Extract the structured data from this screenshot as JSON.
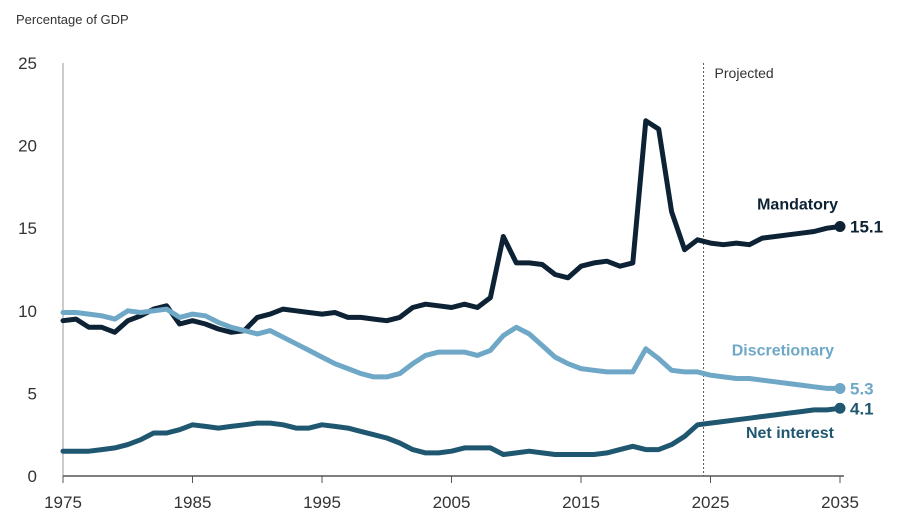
{
  "chart_data": {
    "type": "line",
    "ylabel": "Percentage of GDP",
    "ylim": [
      0,
      25
    ],
    "xlim": [
      1975,
      2035
    ],
    "y_ticks": [
      0,
      5,
      10,
      15,
      20,
      25
    ],
    "x_ticks": [
      1975,
      1985,
      1995,
      2005,
      2015,
      2025,
      2035
    ],
    "projection_start": 2024,
    "projection_label": "Projected",
    "colors": {
      "mandatory": "#0d2235",
      "discretionary": "#6fa8c7",
      "net_interest": "#1f5770"
    },
    "x": [
      1975,
      1976,
      1977,
      1978,
      1979,
      1980,
      1981,
      1982,
      1983,
      1984,
      1985,
      1986,
      1987,
      1988,
      1989,
      1990,
      1991,
      1992,
      1993,
      1994,
      1995,
      1996,
      1997,
      1998,
      1999,
      2000,
      2001,
      2002,
      2003,
      2004,
      2005,
      2006,
      2007,
      2008,
      2009,
      2010,
      2011,
      2012,
      2013,
      2014,
      2015,
      2016,
      2017,
      2018,
      2019,
      2020,
      2021,
      2022,
      2023,
      2024,
      2025,
      2026,
      2027,
      2028,
      2029,
      2030,
      2031,
      2032,
      2033,
      2034,
      2035
    ],
    "series": [
      {
        "key": "mandatory",
        "name": "Mandatory",
        "end_value_label": "15.1",
        "values": [
          9.4,
          9.5,
          9.0,
          9.0,
          8.7,
          9.4,
          9.7,
          10.1,
          10.3,
          9.2,
          9.4,
          9.2,
          8.9,
          8.7,
          8.8,
          9.6,
          9.8,
          10.1,
          10.0,
          9.9,
          9.8,
          9.9,
          9.6,
          9.6,
          9.5,
          9.4,
          9.6,
          10.2,
          10.4,
          10.3,
          10.2,
          10.4,
          10.2,
          10.8,
          14.5,
          12.9,
          12.9,
          12.8,
          12.2,
          12.0,
          12.7,
          12.9,
          13.0,
          12.7,
          12.9,
          21.5,
          21.0,
          16.0,
          13.7,
          14.3,
          14.1,
          14.0,
          14.1,
          14.0,
          14.4,
          14.5,
          14.6,
          14.7,
          14.8,
          15.0,
          15.1
        ]
      },
      {
        "key": "discretionary",
        "name": "Discretionary",
        "end_value_label": "5.3",
        "values": [
          9.9,
          9.9,
          9.8,
          9.7,
          9.5,
          10.0,
          9.9,
          10.0,
          10.1,
          9.6,
          9.8,
          9.7,
          9.3,
          9.0,
          8.8,
          8.6,
          8.8,
          8.4,
          8.0,
          7.6,
          7.2,
          6.8,
          6.5,
          6.2,
          6.0,
          6.0,
          6.2,
          6.8,
          7.3,
          7.5,
          7.5,
          7.5,
          7.3,
          7.6,
          8.5,
          9.0,
          8.6,
          7.9,
          7.2,
          6.8,
          6.5,
          6.4,
          6.3,
          6.3,
          6.3,
          7.7,
          7.1,
          6.4,
          6.3,
          6.3,
          6.1,
          6.0,
          5.9,
          5.9,
          5.8,
          5.7,
          5.6,
          5.5,
          5.4,
          5.3,
          5.3
        ]
      },
      {
        "key": "net_interest",
        "name": "Net interest",
        "end_value_label": "4.1",
        "values": [
          1.5,
          1.5,
          1.5,
          1.6,
          1.7,
          1.9,
          2.2,
          2.6,
          2.6,
          2.8,
          3.1,
          3.0,
          2.9,
          3.0,
          3.1,
          3.2,
          3.2,
          3.1,
          2.9,
          2.9,
          3.1,
          3.0,
          2.9,
          2.7,
          2.5,
          2.3,
          2.0,
          1.6,
          1.4,
          1.4,
          1.5,
          1.7,
          1.7,
          1.7,
          1.3,
          1.4,
          1.5,
          1.4,
          1.3,
          1.3,
          1.3,
          1.3,
          1.4,
          1.6,
          1.8,
          1.6,
          1.6,
          1.9,
          2.4,
          3.1,
          3.2,
          3.3,
          3.4,
          3.5,
          3.6,
          3.7,
          3.8,
          3.9,
          4.0,
          4.0,
          4.1
        ]
      }
    ]
  }
}
